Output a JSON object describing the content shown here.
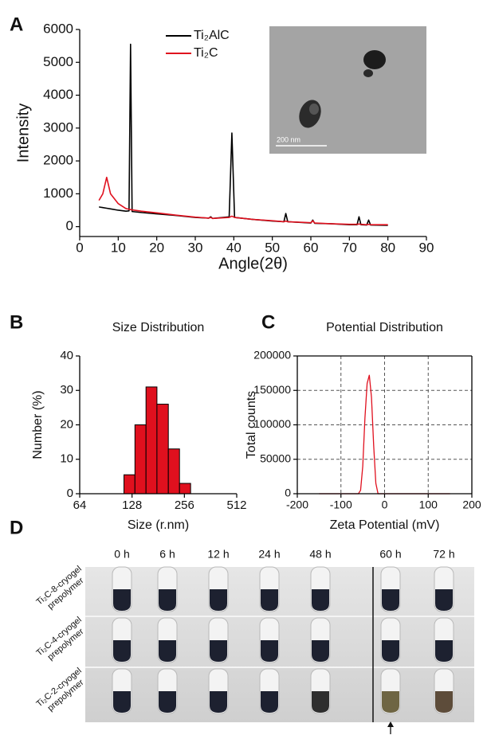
{
  "chart_data": [
    {
      "type": "line",
      "panel": "A",
      "xlabel": "Angle(2θ)",
      "ylabel": "Intensity",
      "xlim": [
        0,
        90
      ],
      "xticks": [
        0,
        10,
        20,
        30,
        40,
        50,
        60,
        70,
        80,
        90
      ],
      "ylim": [
        -300,
        6000
      ],
      "yticks": [
        0,
        1000,
        2000,
        3000,
        4000,
        5000,
        6000
      ],
      "grid": false,
      "x": [
        5,
        6,
        7,
        8,
        10,
        12,
        12.8,
        13.2,
        13.6,
        16,
        20,
        25,
        30,
        33.5,
        34,
        34.5,
        38.8,
        39.5,
        40.2,
        45,
        50,
        53,
        53.5,
        54,
        60,
        60.5,
        61,
        65,
        70,
        72,
        72.5,
        73,
        74.5,
        75,
        75.5,
        80
      ],
      "series": [
        {
          "name": "Ti₂AlC",
          "color": "#000000",
          "values": [
            600,
            580,
            560,
            540,
            500,
            470,
            480,
            5550,
            460,
            430,
            390,
            340,
            280,
            260,
            300,
            250,
            300,
            2850,
            280,
            220,
            170,
            150,
            400,
            150,
            110,
            200,
            100,
            90,
            60,
            60,
            300,
            60,
            50,
            200,
            50,
            40
          ]
        },
        {
          "name": "Ti₂C",
          "color": "#e0101e",
          "values": [
            800,
            1000,
            1500,
            1000,
            700,
            550,
            530,
            520,
            510,
            470,
            420,
            350,
            290,
            260,
            280,
            250,
            280,
            320,
            280,
            220,
            180,
            150,
            170,
            150,
            120,
            180,
            110,
            90,
            70,
            70,
            80,
            70,
            60,
            70,
            60,
            60
          ]
        }
      ],
      "legend": "top-center",
      "annotations": [
        "200 nm"
      ]
    },
    {
      "type": "histogram",
      "panel": "B",
      "title": "Size Distribution",
      "xlabel": "Size (r.nm)",
      "ylabel": "Number (%)",
      "xscale": "log",
      "xlim": [
        64,
        512
      ],
      "xticks": [
        64,
        128,
        256,
        512
      ],
      "ylim": [
        0,
        40
      ],
      "yticks": [
        0,
        10,
        20,
        30,
        40
      ],
      "grid": false,
      "color": "#e0101e",
      "bins": [
        115,
        133,
        154,
        178,
        207,
        240,
        278
      ],
      "values": [
        5.5,
        20,
        31,
        26,
        13,
        3
      ]
    },
    {
      "type": "line",
      "panel": "C",
      "title": "Potential Distribution",
      "xlabel": "Zeta Potential (mV)",
      "ylabel": "Total counts",
      "xlim": [
        -200,
        200
      ],
      "xticks": [
        -200,
        -100,
        0,
        100,
        200
      ],
      "ylim": [
        0,
        200000
      ],
      "yticks": [
        0,
        50000,
        100000,
        150000,
        200000
      ],
      "grid": true,
      "x": [
        -150,
        -60,
        -55,
        -50,
        -45,
        -40,
        -35,
        -30,
        -25,
        -20,
        -15,
        150
      ],
      "series": [
        {
          "color": "#e0101e",
          "values": [
            0,
            0,
            5000,
            40000,
            110000,
            160000,
            172000,
            140000,
            70000,
            15000,
            0,
            0
          ]
        }
      ]
    }
  ],
  "panel_d": {
    "label": "D",
    "times": [
      "0 h",
      "6 h",
      "12 h",
      "24 h",
      "48 h",
      "60 h",
      "72 h"
    ],
    "rows": [
      [
        "Ti₂C-8-cryogel",
        "prepolymer"
      ],
      [
        "Ti₂C-4-cryogel",
        "prepolymer"
      ],
      [
        "Ti₂C-2-cryogel",
        "prepolymer"
      ]
    ]
  }
}
